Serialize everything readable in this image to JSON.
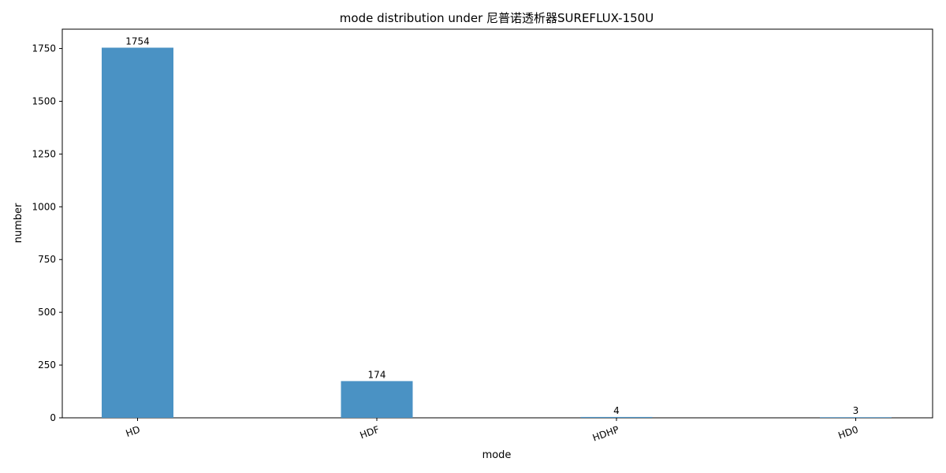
{
  "chart_data": {
    "type": "bar",
    "title": "mode distribution under 尼普诺透析器SUREFLUX-150U",
    "xlabel": "mode",
    "ylabel": "number",
    "categories": [
      "HD",
      "HDF",
      "HDHP",
      "HD0"
    ],
    "values": [
      1754,
      174,
      4,
      3
    ],
    "data_labels": [
      "1754",
      "174",
      "4",
      "3"
    ],
    "ylim": [
      0,
      1841.7
    ],
    "yticks": [
      0,
      250,
      500,
      750,
      1000,
      1250,
      1500,
      1750
    ],
    "ytick_labels": [
      "0",
      "250",
      "500",
      "750",
      "1000",
      "1250",
      "1500",
      "1750"
    ],
    "grid": false,
    "bar_color": "#4a92c4"
  }
}
